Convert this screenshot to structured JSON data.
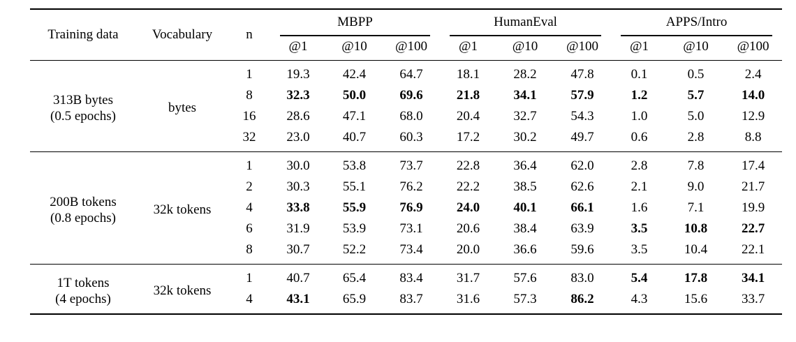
{
  "page": {
    "background": "#ffffff",
    "text_color": "#000000",
    "rule_color": "#000000"
  },
  "table": {
    "headers": {
      "training_data": "Training data",
      "vocabulary": "Vocabulary",
      "n": "n",
      "groups": [
        "MBPP",
        "HumanEval",
        "APPS/Intro"
      ],
      "pass_at": [
        "@1",
        "@10",
        "@100"
      ]
    },
    "row_groups": [
      {
        "training_data_line1": "313B bytes",
        "training_data_line2": "(0.5 epochs)",
        "vocabulary": "bytes",
        "rows": [
          {
            "n": "1",
            "values": [
              "19.3",
              "42.4",
              "64.7",
              "18.1",
              "28.2",
              "47.8",
              "0.1",
              "0.5",
              "2.4"
            ],
            "bold": [
              0,
              0,
              0,
              0,
              0,
              0,
              0,
              0,
              0
            ]
          },
          {
            "n": "8",
            "values": [
              "32.3",
              "50.0",
              "69.6",
              "21.8",
              "34.1",
              "57.9",
              "1.2",
              "5.7",
              "14.0"
            ],
            "bold": [
              1,
              1,
              1,
              1,
              1,
              1,
              1,
              1,
              1
            ]
          },
          {
            "n": "16",
            "values": [
              "28.6",
              "47.1",
              "68.0",
              "20.4",
              "32.7",
              "54.3",
              "1.0",
              "5.0",
              "12.9"
            ],
            "bold": [
              0,
              0,
              0,
              0,
              0,
              0,
              0,
              0,
              0
            ]
          },
          {
            "n": "32",
            "values": [
              "23.0",
              "40.7",
              "60.3",
              "17.2",
              "30.2",
              "49.7",
              "0.6",
              "2.8",
              "8.8"
            ],
            "bold": [
              0,
              0,
              0,
              0,
              0,
              0,
              0,
              0,
              0
            ]
          }
        ]
      },
      {
        "training_data_line1": "200B tokens",
        "training_data_line2": "(0.8 epochs)",
        "vocabulary": "32k tokens",
        "rows": [
          {
            "n": "1",
            "values": [
              "30.0",
              "53.8",
              "73.7",
              "22.8",
              "36.4",
              "62.0",
              "2.8",
              "7.8",
              "17.4"
            ],
            "bold": [
              0,
              0,
              0,
              0,
              0,
              0,
              0,
              0,
              0
            ]
          },
          {
            "n": "2",
            "values": [
              "30.3",
              "55.1",
              "76.2",
              "22.2",
              "38.5",
              "62.6",
              "2.1",
              "9.0",
              "21.7"
            ],
            "bold": [
              0,
              0,
              0,
              0,
              0,
              0,
              0,
              0,
              0
            ]
          },
          {
            "n": "4",
            "values": [
              "33.8",
              "55.9",
              "76.9",
              "24.0",
              "40.1",
              "66.1",
              "1.6",
              "7.1",
              "19.9"
            ],
            "bold": [
              1,
              1,
              1,
              1,
              1,
              1,
              0,
              0,
              0
            ]
          },
          {
            "n": "6",
            "values": [
              "31.9",
              "53.9",
              "73.1",
              "20.6",
              "38.4",
              "63.9",
              "3.5",
              "10.8",
              "22.7"
            ],
            "bold": [
              0,
              0,
              0,
              0,
              0,
              0,
              1,
              1,
              1
            ]
          },
          {
            "n": "8",
            "values": [
              "30.7",
              "52.2",
              "73.4",
              "20.0",
              "36.6",
              "59.6",
              "3.5",
              "10.4",
              "22.1"
            ],
            "bold": [
              0,
              0,
              0,
              0,
              0,
              0,
              0,
              0,
              0
            ]
          }
        ]
      },
      {
        "training_data_line1": "1T tokens",
        "training_data_line2": "(4 epochs)",
        "vocabulary": "32k tokens",
        "rows": [
          {
            "n": "1",
            "values": [
              "40.7",
              "65.4",
              "83.4",
              "31.7",
              "57.6",
              "83.0",
              "5.4",
              "17.8",
              "34.1"
            ],
            "bold": [
              0,
              0,
              0,
              0,
              0,
              0,
              1,
              1,
              1
            ]
          },
          {
            "n": "4",
            "values": [
              "43.1",
              "65.9",
              "83.7",
              "31.6",
              "57.3",
              "86.2",
              "4.3",
              "15.6",
              "33.7"
            ],
            "bold": [
              1,
              0,
              0,
              0,
              0,
              1,
              0,
              0,
              0
            ]
          }
        ]
      }
    ]
  }
}
